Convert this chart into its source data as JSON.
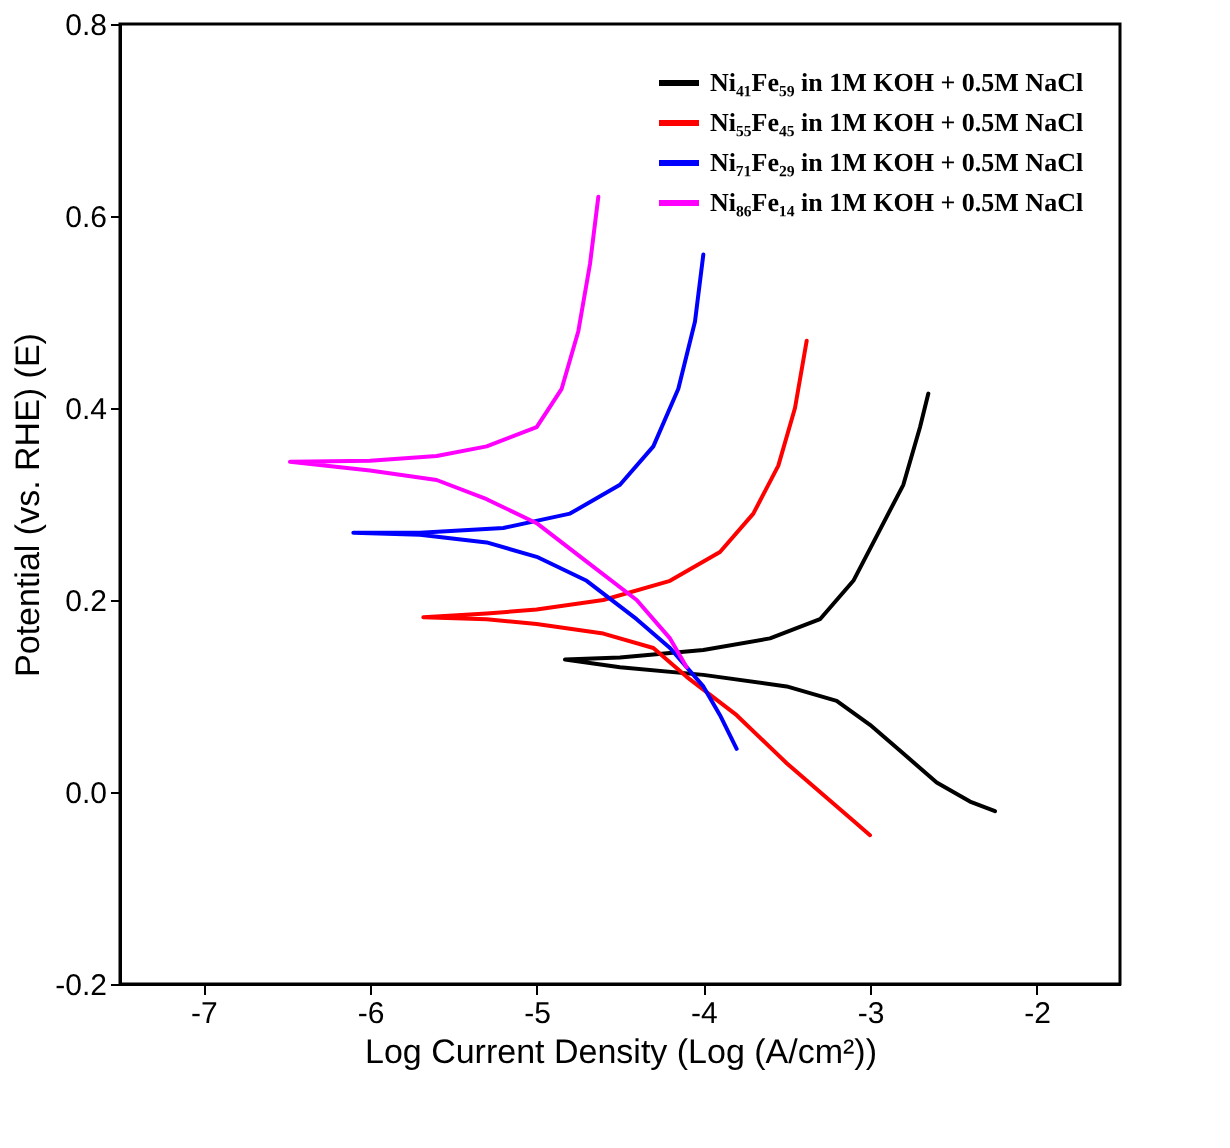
{
  "chart_data": {
    "type": "line",
    "xlabel": "Log Current Density (Log (A/cm²))",
    "ylabel": "Potential (vs. RHE) (E)",
    "xlim": [
      -7.5,
      -1.5
    ],
    "xticks": [
      -7,
      -6,
      -5,
      -4,
      -3,
      -2
    ],
    "ylim": [
      -0.2,
      0.8
    ],
    "yticks": [
      -0.2,
      {
        "value": 0.0,
        "label": "0.0"
      },
      0.2,
      0.4,
      0.6,
      0.8
    ],
    "grid": false,
    "legend": "top right",
    "line_style": "solid",
    "series": [
      {
        "name": "Ni₄₁Fe₅₉ in 1M KOH + 0.5M NaCl",
        "color": "#000000",
        "x": [
          -2.25,
          -2.4,
          -2.6,
          -2.8,
          -3.0,
          -3.2,
          -3.5,
          -4.0,
          -4.5,
          -4.83,
          -4.5,
          -4.0,
          -3.6,
          -3.3,
          -3.1,
          -2.95,
          -2.8,
          -2.7,
          -2.65
        ],
        "values": [
          -0.02,
          -0.01,
          0.01,
          0.04,
          0.07,
          0.095,
          0.11,
          0.122,
          0.13,
          0.138,
          0.14,
          0.148,
          0.16,
          0.18,
          0.22,
          0.27,
          0.32,
          0.38,
          0.415
        ]
      },
      {
        "name": "Ni₅₅Fe₄₅ in 1M KOH + 0.5M NaCl",
        "color": "#ff0000",
        "x": [
          -3.0,
          -3.1,
          -3.3,
          -3.5,
          -3.8,
          -4.1,
          -4.3,
          -4.6,
          -5.0,
          -5.3,
          -5.68,
          -5.3,
          -5.0,
          -4.6,
          -4.2,
          -3.9,
          -3.7,
          -3.55,
          -3.45,
          -3.38
        ],
        "values": [
          -0.045,
          -0.03,
          0.0,
          0.03,
          0.08,
          0.12,
          0.15,
          0.165,
          0.175,
          0.18,
          0.182,
          0.186,
          0.19,
          0.2,
          0.22,
          0.25,
          0.29,
          0.34,
          0.4,
          0.47
        ]
      },
      {
        "name": "Ni₇₁Fe₂₉ in 1M KOH + 0.5M NaCl",
        "color": "#0000ff",
        "x": [
          -3.8,
          -3.9,
          -4.0,
          -4.2,
          -4.4,
          -4.7,
          -5.0,
          -5.3,
          -5.7,
          -6.1,
          -5.7,
          -5.2,
          -4.8,
          -4.5,
          -4.3,
          -4.15,
          -4.05,
          -4.0
        ],
        "values": [
          0.045,
          0.08,
          0.11,
          0.15,
          0.18,
          0.22,
          0.245,
          0.26,
          0.268,
          0.27,
          0.27,
          0.275,
          0.29,
          0.32,
          0.36,
          0.42,
          0.49,
          0.56
        ]
      },
      {
        "name": "Ni₈₆Fe₁₄ in 1M KOH + 0.5M NaCl",
        "color": "#ff00ff",
        "x": [
          -4.1,
          -4.2,
          -4.4,
          -4.7,
          -5.0,
          -5.3,
          -5.6,
          -6.0,
          -6.48,
          -6.0,
          -5.6,
          -5.3,
          -5.0,
          -4.85,
          -4.75,
          -4.68,
          -4.63
        ],
        "values": [
          0.13,
          0.16,
          0.2,
          0.24,
          0.28,
          0.305,
          0.325,
          0.335,
          0.344,
          0.345,
          0.35,
          0.36,
          0.38,
          0.42,
          0.48,
          0.55,
          0.62
        ]
      }
    ]
  }
}
